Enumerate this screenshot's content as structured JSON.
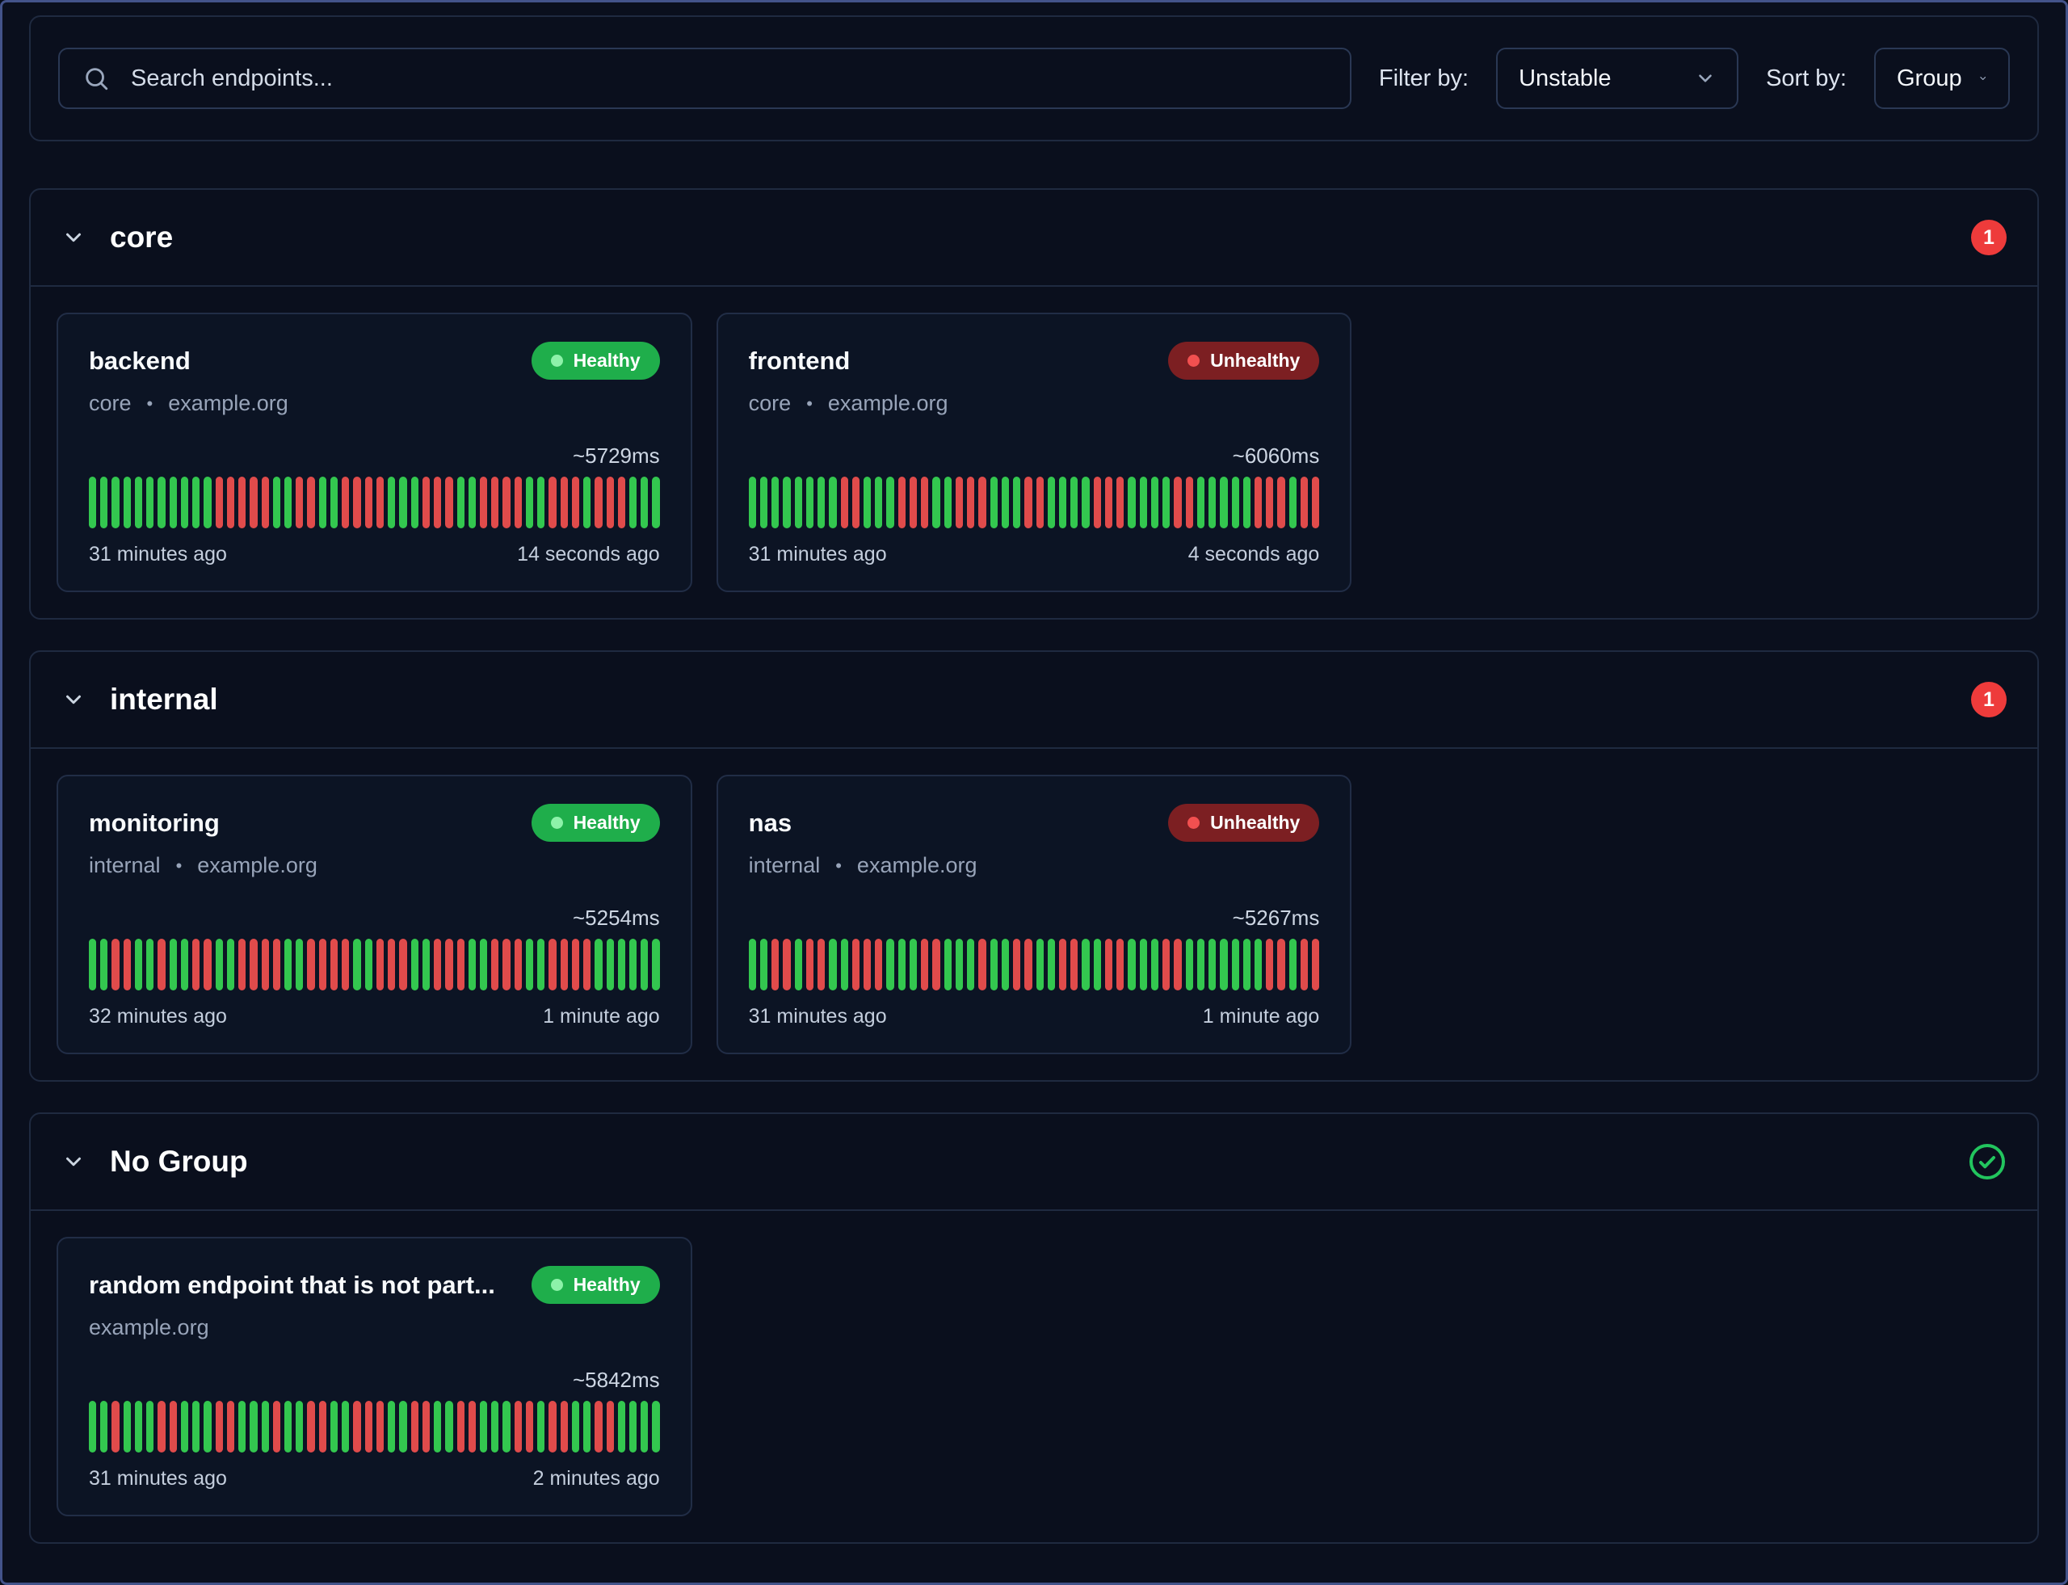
{
  "separator": "•",
  "colors": {
    "page_bg": "#0a0f1d",
    "card_bg": "#0c1424",
    "healthy_badge": "#1fae4b",
    "unhealthy_badge": "#7c1f22",
    "bar_up": "#33c74f",
    "bar_down": "#e04b4b",
    "count_badge": "#ee3b3b",
    "check": "#22c55e"
  },
  "toolbar": {
    "search_placeholder": "Search endpoints...",
    "filter_label": "Filter by:",
    "filter_value": "Unstable",
    "sort_label": "Sort by:",
    "sort_value": "Group"
  },
  "groups": [
    {
      "name": "core",
      "indicator": {
        "type": "count",
        "value": "1"
      },
      "endpoints": [
        {
          "name": "backend",
          "status": "Healthy",
          "subtitle_group": "core",
          "subtitle_host": "example.org",
          "response_time": "~5729ms",
          "history": "GGGGGGGGGGGRRRRRGGRRGGRRRRGGGRRRGGRRRRGGRRRGRRRGGG",
          "oldest": "31 minutes ago",
          "newest": "14 seconds ago"
        },
        {
          "name": "frontend",
          "status": "Unhealthy",
          "subtitle_group": "core",
          "subtitle_host": "example.org",
          "response_time": "~6060ms",
          "history": "GGGGGGGGRRGGGRRRGGRRRGGGRRGGGGRRRGGGGRRGGGGGRRRGRR",
          "oldest": "31 minutes ago",
          "newest": "4 seconds ago"
        }
      ]
    },
    {
      "name": "internal",
      "indicator": {
        "type": "count",
        "value": "1"
      },
      "endpoints": [
        {
          "name": "monitoring",
          "status": "Healthy",
          "subtitle_group": "internal",
          "subtitle_host": "example.org",
          "response_time": "~5254ms",
          "history": "GGRRGGRGGRRGGRRRRGGRRRRGGRRRGGRRRGGRRRGGRRRRGGGGGG",
          "oldest": "32 minutes ago",
          "newest": "1 minute ago"
        },
        {
          "name": "nas",
          "status": "Unhealthy",
          "subtitle_group": "internal",
          "subtitle_host": "example.org",
          "response_time": "~5267ms",
          "history": "GGRRGRRGGRRRGGGRRGGGRGGRRGGRRGGRRGGGRRGGGGGGGRRGRR",
          "oldest": "31 minutes ago",
          "newest": "1 minute ago"
        }
      ]
    },
    {
      "name": "No Group",
      "indicator": {
        "type": "check"
      },
      "endpoints": [
        {
          "name": "random endpoint that is not part...",
          "status": "Healthy",
          "subtitle_group": null,
          "subtitle_host": "example.org",
          "response_time": "~5842ms",
          "history": "GGRGGGRRGGGRRGGGRGGRRGGRRRGGRRGGRRGGGRRGRRGGRRGGGG",
          "oldest": "31 minutes ago",
          "newest": "2 minutes ago"
        }
      ]
    }
  ]
}
